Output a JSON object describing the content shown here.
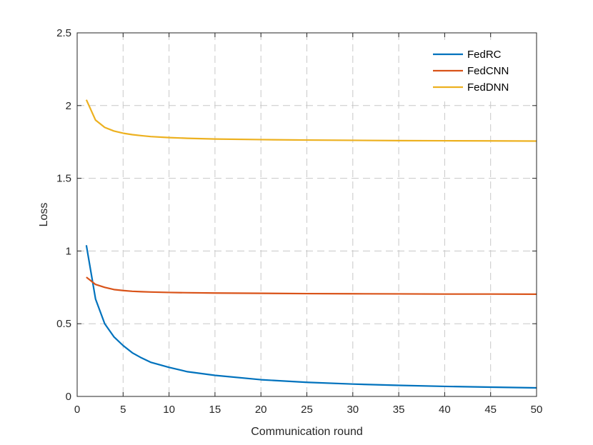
{
  "chart_data": {
    "type": "line",
    "title": "",
    "xlabel": "Communication round",
    "ylabel": "Loss",
    "xlim": [
      0,
      50
    ],
    "ylim": [
      0,
      2.5
    ],
    "xticks": [
      0,
      5,
      10,
      15,
      20,
      25,
      30,
      35,
      40,
      45,
      50
    ],
    "yticks": [
      0,
      0.5,
      1,
      1.5,
      2,
      2.5
    ],
    "xtick_labels": [
      "0",
      "5",
      "10",
      "15",
      "20",
      "25",
      "30",
      "35",
      "40",
      "45",
      "50"
    ],
    "ytick_labels": [
      "0",
      "0.5",
      "1",
      "1.5",
      "2",
      "2.5"
    ],
    "grid": true,
    "legend_position": "top-right",
    "x": [
      1,
      2,
      3,
      4,
      5,
      6,
      7,
      8,
      10,
      12,
      15,
      20,
      25,
      30,
      35,
      40,
      45,
      50
    ],
    "series": [
      {
        "name": "FedRC",
        "color": "#0072BD",
        "values": [
          1.04,
          0.67,
          0.5,
          0.41,
          0.35,
          0.3,
          0.265,
          0.235,
          0.2,
          0.17,
          0.145,
          0.115,
          0.097,
          0.085,
          0.076,
          0.069,
          0.064,
          0.059
        ]
      },
      {
        "name": "FedCNN",
        "color": "#D95319",
        "values": [
          0.82,
          0.77,
          0.75,
          0.735,
          0.728,
          0.723,
          0.72,
          0.718,
          0.715,
          0.713,
          0.711,
          0.709,
          0.707,
          0.706,
          0.705,
          0.704,
          0.704,
          0.703
        ]
      },
      {
        "name": "FedDNN",
        "color": "#EDB120",
        "values": [
          2.04,
          1.9,
          1.85,
          1.825,
          1.81,
          1.8,
          1.793,
          1.787,
          1.78,
          1.775,
          1.77,
          1.766,
          1.763,
          1.761,
          1.759,
          1.758,
          1.757,
          1.756
        ]
      }
    ]
  }
}
